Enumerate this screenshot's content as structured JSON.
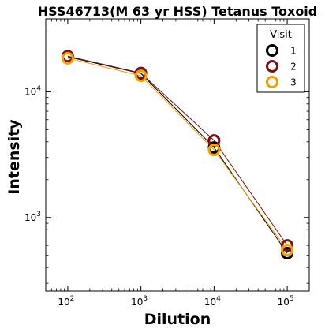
{
  "chart_data": {
    "type": "line",
    "title": "HSS46713(M 63 yr HSS) Tetanus Toxoid",
    "xlabel": "Dilution",
    "ylabel": "Intensity",
    "x_scale": "log",
    "y_scale": "log",
    "xlim": [
      50,
      200000
    ],
    "ylim": [
      260,
      38000
    ],
    "x_ticks": [
      {
        "value": 100,
        "base": "10",
        "exp": "2"
      },
      {
        "value": 1000,
        "base": "10",
        "exp": "3"
      },
      {
        "value": 10000,
        "base": "10",
        "exp": "4"
      },
      {
        "value": 100000,
        "base": "10",
        "exp": "5"
      }
    ],
    "y_ticks": [
      {
        "value": 1000,
        "base": "10",
        "exp": "3"
      },
      {
        "value": 10000,
        "base": "10",
        "exp": "4"
      }
    ],
    "grid": false,
    "legend": {
      "title": "Visit",
      "position": "top-right"
    },
    "series": [
      {
        "name": "1",
        "color": "#000000",
        "x": [
          100,
          1000,
          10000,
          100000
        ],
        "y": [
          19000,
          14000,
          3600,
          520
        ]
      },
      {
        "name": "2",
        "color": "#7b1010",
        "x": [
          100,
          1000,
          10000,
          100000
        ],
        "y": [
          19200,
          14100,
          4100,
          600
        ]
      },
      {
        "name": "3",
        "color": "#f5a000",
        "x": [
          100,
          1000,
          10000,
          100000
        ],
        "y": [
          18500,
          13400,
          3450,
          550
        ]
      }
    ]
  }
}
